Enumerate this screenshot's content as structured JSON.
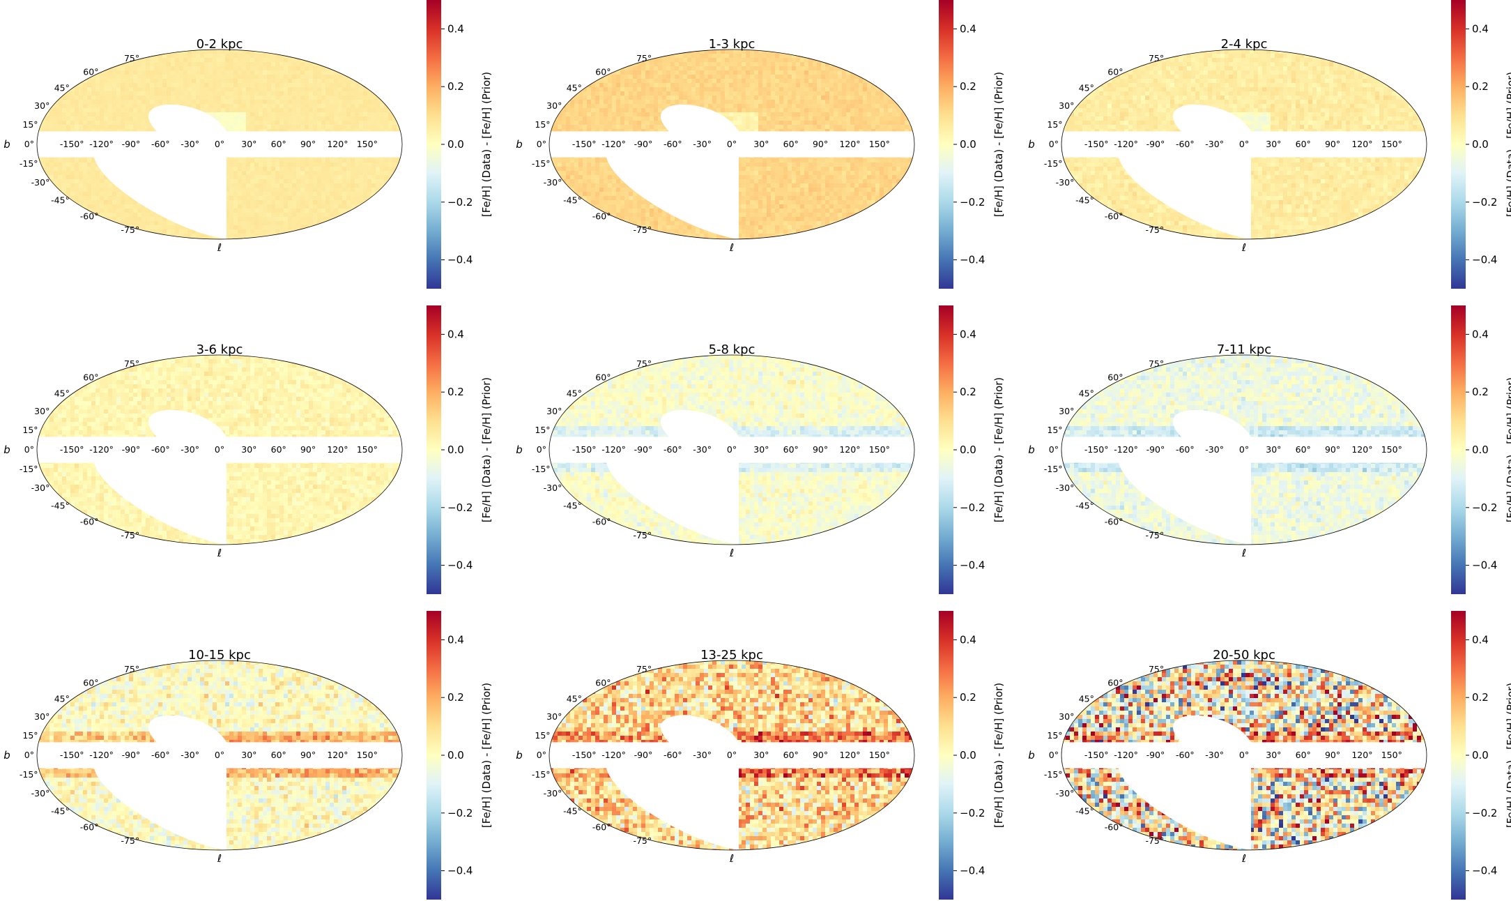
{
  "figure": {
    "colormap": "RdYlBu_r",
    "colors": {
      "red": "#a50026",
      "orange": "#f46d43",
      "yellow": "#fee090",
      "pale": "#ffffbf",
      "lightblue": "#e0f3f8",
      "blue": "#4575b4",
      "darkblue": "#313695",
      "background": "#ffffff",
      "frame": "#000000"
    }
  },
  "chart_data": [
    {
      "type": "heatmap",
      "projection": "mollweide",
      "title": "0-2 kpc",
      "xlabel": "ℓ",
      "ylabel": "b",
      "lon_ticks": [
        "-150°",
        "-120°",
        "-90°",
        "-60°",
        "-30°",
        "0°",
        "30°",
        "60°",
        "90°",
        "120°",
        "150°"
      ],
      "lat_ticks_north": [
        "75°",
        "60°",
        "45°",
        "30°",
        "15°",
        "0°"
      ],
      "lat_ticks_south": [
        "-15°",
        "-30°",
        "-45°",
        "-60°",
        "-75°"
      ],
      "colorbar": {
        "label": "[Fe/H] (Data) - [Fe/H] (Prior)",
        "ticks": [
          "-0.4",
          "-0.2",
          "0.0",
          "0.2",
          "0.4"
        ],
        "range": [
          -0.5,
          0.5
        ]
      },
      "masked_regions": [
        "|b| < 10°",
        "southern celestial cap (no coverage)"
      ],
      "mean_residual": 0.07,
      "scatter": 0.02
    },
    {
      "type": "heatmap",
      "projection": "mollweide",
      "title": "1-3 kpc",
      "xlabel": "ℓ",
      "ylabel": "b",
      "lon_ticks": [
        "-150°",
        "-120°",
        "-90°",
        "-60°",
        "-30°",
        "0°",
        "30°",
        "60°",
        "90°",
        "120°",
        "150°"
      ],
      "lat_ticks_north": [
        "75°",
        "60°",
        "45°",
        "30°",
        "15°",
        "0°"
      ],
      "lat_ticks_south": [
        "-15°",
        "-30°",
        "-45°",
        "-60°",
        "-75°"
      ],
      "colorbar": {
        "label": "[Fe/H] (Data) - [Fe/H] (Prior)",
        "ticks": [
          "-0.4",
          "-0.2",
          "0.0",
          "0.2",
          "0.4"
        ],
        "range": [
          -0.5,
          0.5
        ]
      },
      "masked_regions": [
        "|b| < 10°",
        "southern celestial cap (no coverage)"
      ],
      "mean_residual": 0.12,
      "scatter": 0.03
    },
    {
      "type": "heatmap",
      "projection": "mollweide",
      "title": "2-4 kpc",
      "xlabel": "ℓ",
      "ylabel": "b",
      "lon_ticks": [
        "-150°",
        "-120°",
        "-90°",
        "-60°",
        "-30°",
        "0°",
        "30°",
        "60°",
        "90°",
        "120°",
        "150°"
      ],
      "lat_ticks_north": [
        "75°",
        "60°",
        "45°",
        "30°",
        "15°",
        "0°"
      ],
      "lat_ticks_south": [
        "-15°",
        "-30°",
        "-45°",
        "-60°",
        "-75°"
      ],
      "colorbar": {
        "label": "[Fe/H] (Data) - [Fe/H] (Prior)",
        "ticks": [
          "-0.4",
          "-0.2",
          "0.0",
          "0.2",
          "0.4"
        ],
        "range": [
          -0.5,
          0.5
        ]
      },
      "masked_regions": [
        "|b| < 10°",
        "southern celestial cap (no coverage)"
      ],
      "mean_residual": 0.06,
      "scatter": 0.04
    },
    {
      "type": "heatmap",
      "projection": "mollweide",
      "title": "3-6 kpc",
      "xlabel": "ℓ",
      "ylabel": "b",
      "lon_ticks": [
        "-150°",
        "-120°",
        "-90°",
        "-60°",
        "-30°",
        "0°",
        "30°",
        "60°",
        "90°",
        "120°",
        "150°"
      ],
      "lat_ticks_north": [
        "75°",
        "60°",
        "45°",
        "30°",
        "15°",
        "0°"
      ],
      "lat_ticks_south": [
        "-15°",
        "-30°",
        "-45°",
        "-60°",
        "-75°"
      ],
      "colorbar": {
        "label": "[Fe/H] (Data) - [Fe/H] (Prior)",
        "ticks": [
          "-0.4",
          "-0.2",
          "0.0",
          "0.2",
          "0.4"
        ],
        "range": [
          -0.5,
          0.5
        ]
      },
      "masked_regions": [
        "|b| < 10°",
        "southern celestial cap (no coverage)"
      ],
      "mean_residual": 0.03,
      "scatter": 0.05
    },
    {
      "type": "heatmap",
      "projection": "mollweide",
      "title": "5-8 kpc",
      "xlabel": "ℓ",
      "ylabel": "b",
      "lon_ticks": [
        "-150°",
        "-120°",
        "-90°",
        "-60°",
        "-30°",
        "0°",
        "30°",
        "60°",
        "90°",
        "120°",
        "150°"
      ],
      "lat_ticks_north": [
        "75°",
        "60°",
        "45°",
        "30°",
        "15°",
        "0°"
      ],
      "lat_ticks_south": [
        "-15°",
        "-30°",
        "-45°",
        "-60°",
        "-75°"
      ],
      "colorbar": {
        "label": "[Fe/H] (Data) - [Fe/H] (Prior)",
        "ticks": [
          "-0.4",
          "-0.2",
          "0.0",
          "0.2",
          "0.4"
        ],
        "range": [
          -0.5,
          0.5
        ]
      },
      "masked_regions": [
        "|b| < 10°",
        "southern celestial cap (no coverage)"
      ],
      "mean_residual": -0.02,
      "scatter": 0.07
    },
    {
      "type": "heatmap",
      "projection": "mollweide",
      "title": "7-11 kpc",
      "xlabel": "ℓ",
      "ylabel": "b",
      "lon_ticks": [
        "-150°",
        "-120°",
        "-90°",
        "-60°",
        "-30°",
        "0°",
        "30°",
        "60°",
        "90°",
        "120°",
        "150°"
      ],
      "lat_ticks_north": [
        "75°",
        "60°",
        "45°",
        "30°",
        "15°",
        "0°"
      ],
      "lat_ticks_south": [
        "-15°",
        "-30°",
        "-45°",
        "-60°",
        "-75°"
      ],
      "colorbar": {
        "label": "[Fe/H] (Data) - [Fe/H] (Prior)",
        "ticks": [
          "-0.4",
          "-0.2",
          "0.0",
          "0.2",
          "0.4"
        ],
        "range": [
          -0.5,
          0.5
        ]
      },
      "masked_regions": [
        "|b| < 10°",
        "southern celestial cap (no coverage)"
      ],
      "mean_residual": -0.05,
      "scatter": 0.08
    },
    {
      "type": "heatmap",
      "projection": "mollweide",
      "title": "10-15 kpc",
      "xlabel": "ℓ",
      "ylabel": "b",
      "lon_ticks": [
        "-150°",
        "-120°",
        "-90°",
        "-60°",
        "-30°",
        "0°",
        "30°",
        "60°",
        "90°",
        "120°",
        "150°"
      ],
      "lat_ticks_north": [
        "75°",
        "60°",
        "45°",
        "30°",
        "15°",
        "0°"
      ],
      "lat_ticks_south": [
        "-15°",
        "-30°",
        "-45°",
        "-60°",
        "-75°"
      ],
      "colorbar": {
        "label": "[Fe/H] (Data) - [Fe/H] (Prior)",
        "ticks": [
          "-0.4",
          "-0.2",
          "0.0",
          "0.2",
          "0.4"
        ],
        "range": [
          -0.5,
          0.5
        ]
      },
      "masked_regions": [
        "|b| < 10°",
        "southern celestial cap (no coverage)"
      ],
      "mean_residual": 0.0,
      "scatter": 0.12
    },
    {
      "type": "heatmap",
      "projection": "mollweide",
      "title": "13-25 kpc",
      "xlabel": "ℓ",
      "ylabel": "b",
      "lon_ticks": [
        "-150°",
        "-120°",
        "-90°",
        "-60°",
        "-30°",
        "0°",
        "30°",
        "60°",
        "90°",
        "120°",
        "150°"
      ],
      "lat_ticks_north": [
        "75°",
        "60°",
        "45°",
        "30°",
        "15°",
        "0°"
      ],
      "lat_ticks_south": [
        "-15°",
        "-30°",
        "-45°",
        "-60°",
        "-75°"
      ],
      "colorbar": {
        "label": "[Fe/H] (Data) - [Fe/H] (Prior)",
        "ticks": [
          "-0.4",
          "-0.2",
          "0.0",
          "0.2",
          "0.4"
        ],
        "range": [
          -0.5,
          0.5
        ]
      },
      "masked_regions": [
        "|b| < 10°",
        "southern celestial cap (no coverage)"
      ],
      "mean_residual": 0.1,
      "scatter": 0.22
    },
    {
      "type": "heatmap",
      "projection": "mollweide",
      "title": "20-50 kpc",
      "xlabel": "ℓ",
      "ylabel": "b",
      "lon_ticks": [
        "-150°",
        "-120°",
        "-90°",
        "-60°",
        "-30°",
        "0°",
        "30°",
        "60°",
        "90°",
        "120°",
        "150°"
      ],
      "lat_ticks_north": [
        "75°",
        "60°",
        "45°",
        "30°",
        "15°",
        "0°"
      ],
      "lat_ticks_south": [
        "-15°",
        "-30°",
        "-45°",
        "-60°",
        "-75°"
      ],
      "colorbar": {
        "label": "[Fe/H] (Data) - [Fe/H] (Prior)",
        "ticks": [
          "-0.4",
          "-0.2",
          "0.0",
          "0.2",
          "0.4"
        ],
        "range": [
          -0.5,
          0.5
        ]
      },
      "masked_regions": [
        "|b| < 10°",
        "southern celestial cap (no coverage)"
      ],
      "mean_residual": 0.0,
      "scatter": 0.45
    }
  ]
}
